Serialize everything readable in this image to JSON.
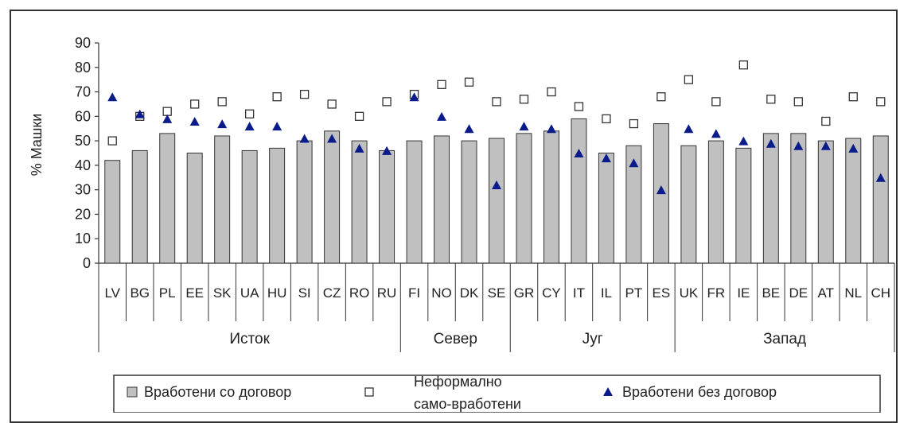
{
  "chart_data": {
    "type": "bar",
    "ylabel": "% Машки",
    "ylim": [
      0,
      90
    ],
    "yticks": [
      "0",
      "10",
      "20",
      "30",
      "40",
      "50",
      "60",
      "70",
      "80",
      "90"
    ],
    "categories": [
      "LV",
      "BG",
      "PL",
      "EE",
      "SK",
      "UA",
      "HU",
      "SI",
      "CZ",
      "RO",
      "RU",
      "FI",
      "NO",
      "DK",
      "SE",
      "GR",
      "CY",
      "IT",
      "IL",
      "PT",
      "ES",
      "UK",
      "FR",
      "IE",
      "BE",
      "DE",
      "AT",
      "NL",
      "CH"
    ],
    "groups": [
      {
        "name": "Исток",
        "from": 0,
        "to": 10
      },
      {
        "name": "Север",
        "from": 11,
        "to": 14
      },
      {
        "name": "Југ",
        "from": 15,
        "to": 20
      },
      {
        "name": "Запад",
        "from": 21,
        "to": 28
      }
    ],
    "series": [
      {
        "name": "Вработени со договор",
        "kind": "bar",
        "color": "#c0c0c0",
        "values": [
          42,
          46,
          53,
          45,
          52,
          46,
          47,
          50,
          54,
          50,
          46,
          50,
          52,
          50,
          51,
          53,
          54,
          59,
          45,
          48,
          57,
          48,
          50,
          47,
          53,
          53,
          50,
          51,
          52
        ]
      },
      {
        "name": "Неформално само-вработени",
        "kind": "square",
        "color": "#ffffff",
        "values": [
          50,
          60,
          62,
          65,
          66,
          61,
          68,
          69,
          65,
          60,
          66,
          69,
          73,
          74,
          66,
          67,
          70,
          64,
          59,
          57,
          68,
          75,
          66,
          81,
          67,
          66,
          58,
          68,
          66
        ]
      },
      {
        "name": "Вработени без договор",
        "kind": "triangle",
        "color": "#0a1b8a",
        "values": [
          68,
          61,
          59,
          58,
          57,
          56,
          56,
          51,
          51,
          47,
          46,
          68,
          60,
          55,
          32,
          56,
          55,
          45,
          43,
          41,
          30,
          55,
          53,
          50,
          49,
          48,
          48,
          47,
          35
        ]
      }
    ],
    "legend": {
      "position": "bottom",
      "labels": [
        "Вработени со договор",
        "Неформално",
        "само-вработени",
        "Вработени без договор"
      ]
    },
    "grid": false
  }
}
